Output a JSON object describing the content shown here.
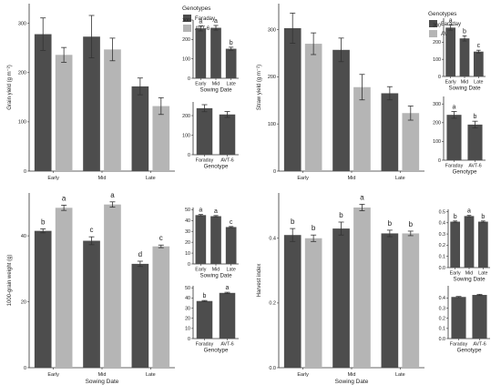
{
  "colors": {
    "faraday": "#4d4d4d",
    "avt6": "#b5b5b5",
    "axis": "#333333",
    "text": "#222222"
  },
  "legend": {
    "title": "Genotypes",
    "items": [
      "Faraday",
      "AVT-6"
    ]
  },
  "chart_data": [
    {
      "id": "grain-main",
      "type": "bar",
      "role": "main",
      "ylabel": "Grain yield (g m⁻²)",
      "xlabel": "",
      "categories": [
        "Early",
        "Mid",
        "Late"
      ],
      "ylim": [
        0,
        340
      ],
      "yticks": [
        0,
        100,
        200,
        300
      ],
      "legend": true,
      "series": [
        {
          "key": "faraday",
          "values": [
            278,
            273,
            172
          ],
          "errors": [
            33,
            43,
            17
          ],
          "letters": []
        },
        {
          "key": "avt6",
          "values": [
            236,
            247,
            132
          ],
          "errors": [
            15,
            23,
            17
          ],
          "letters": []
        }
      ]
    },
    {
      "id": "grain-sowing",
      "type": "bar",
      "role": "inset",
      "xlabel": "Sowing Date",
      "categories": [
        "Early",
        "Mid",
        "Late"
      ],
      "ylim": [
        0,
        300
      ],
      "yticks": [
        0,
        100,
        200,
        300
      ],
      "series": [
        {
          "key": "faraday",
          "values": [
            257,
            260,
            152
          ],
          "errors": [
            13,
            12,
            8
          ],
          "letters": [
            "a",
            "a",
            "b"
          ]
        }
      ]
    },
    {
      "id": "grain-genotype",
      "type": "bar",
      "role": "inset",
      "xlabel": "Genotype",
      "categories": [
        "Faraday",
        "AVT-6"
      ],
      "ylim": [
        0,
        270
      ],
      "yticks": [
        0,
        100,
        200
      ],
      "series": [
        {
          "key": "faraday",
          "values": [
            238,
            206
          ],
          "errors": [
            18,
            15
          ],
          "letters": []
        }
      ]
    },
    {
      "id": "straw-main",
      "type": "bar",
      "role": "main",
      "ylabel": "Straw yield (g m⁻²)",
      "xlabel": "",
      "categories": [
        "Early",
        "Mid",
        "Late"
      ],
      "ylim": [
        0,
        355
      ],
      "yticks": [
        0,
        100,
        200,
        300
      ],
      "legend": true,
      "series": [
        {
          "key": "faraday",
          "values": [
            303,
            257,
            165
          ],
          "errors": [
            32,
            25,
            14
          ],
          "letters": []
        },
        {
          "key": "avt6",
          "values": [
            270,
            178,
            123
          ],
          "errors": [
            23,
            27,
            15
          ],
          "letters": []
        }
      ]
    },
    {
      "id": "straw-sowing",
      "type": "bar",
      "role": "inset",
      "xlabel": "Sowing Date",
      "categories": [
        "Early",
        "Mid",
        "Late"
      ],
      "ylim": [
        0,
        340
      ],
      "yticks": [
        0,
        100,
        200,
        300
      ],
      "series": [
        {
          "key": "faraday",
          "values": [
            285,
            222,
            145
          ],
          "errors": [
            15,
            15,
            8
          ],
          "letters": [
            "a",
            "b",
            "c"
          ]
        }
      ]
    },
    {
      "id": "straw-genotype",
      "type": "bar",
      "role": "inset",
      "xlabel": "Genotype",
      "categories": [
        "Faraday",
        "AVT-6"
      ],
      "ylim": [
        0,
        340
      ],
      "yticks": [
        0,
        100,
        200,
        300
      ],
      "series": [
        {
          "key": "faraday",
          "values": [
            242,
            190
          ],
          "errors": [
            18,
            18
          ],
          "letters": [
            "a",
            "b"
          ]
        }
      ]
    },
    {
      "id": "tgw-main",
      "type": "bar",
      "role": "main",
      "ylabel": "1000-grain weight (g)",
      "xlabel": "Sowing Date",
      "categories": [
        "Early",
        "Mid",
        "Late"
      ],
      "ylim": [
        0,
        53
      ],
      "yticks": [
        0,
        20,
        40
      ],
      "legend": false,
      "series": [
        {
          "key": "faraday",
          "values": [
            41.5,
            38.5,
            31.5
          ],
          "errors": [
            0.6,
            1.2,
            0.8
          ],
          "letters": [
            "b",
            "c",
            "d"
          ]
        },
        {
          "key": "avt6",
          "values": [
            48.5,
            49.5,
            36.8
          ],
          "errors": [
            0.8,
            0.8,
            0.4
          ],
          "letters": [
            "a",
            "a",
            "c"
          ]
        }
      ]
    },
    {
      "id": "tgw-sowing",
      "type": "bar",
      "role": "inset",
      "xlabel": "Sowing Date",
      "categories": [
        "Early",
        "Mid",
        "Late"
      ],
      "ylim": [
        0,
        52
      ],
      "yticks": [
        0,
        10,
        20,
        30,
        40,
        50
      ],
      "series": [
        {
          "key": "faraday",
          "values": [
            45,
            44,
            34
          ],
          "errors": [
            0.6,
            0.6,
            0.5
          ],
          "letters": [
            "a",
            "a",
            "c"
          ]
        }
      ]
    },
    {
      "id": "tgw-genotype",
      "type": "bar",
      "role": "inset",
      "xlabel": "Genotype",
      "categories": [
        "Faraday",
        "AVT-6"
      ],
      "ylim": [
        0,
        52
      ],
      "yticks": [
        0,
        10,
        20,
        30,
        40,
        50
      ],
      "series": [
        {
          "key": "faraday",
          "values": [
            37,
            45
          ],
          "errors": [
            0.5,
            0.6
          ],
          "letters": [
            "b",
            "a"
          ]
        }
      ]
    },
    {
      "id": "hi-main",
      "type": "bar",
      "role": "main",
      "ylabel": "Harvest index",
      "xlabel": "Sowing Date",
      "categories": [
        "Early",
        "Mid",
        "Late"
      ],
      "ylim": [
        0,
        0.54
      ],
      "yticks": [
        0.0,
        0.2,
        0.4
      ],
      "tick_format": "1dp",
      "legend": false,
      "series": [
        {
          "key": "faraday",
          "values": [
            0.41,
            0.43,
            0.415
          ],
          "errors": [
            0.02,
            0.02,
            0.01
          ],
          "letters": [
            "b",
            "b",
            "b"
          ]
        },
        {
          "key": "avt6",
          "values": [
            0.4,
            0.495,
            0.415
          ],
          "errors": [
            0.01,
            0.01,
            0.007
          ],
          "letters": [
            "b",
            "a",
            "b"
          ]
        }
      ]
    },
    {
      "id": "hi-sowing",
      "type": "bar",
      "role": "inset",
      "xlabel": "Sowing Date",
      "categories": [
        "Early",
        "Mid",
        "Late"
      ],
      "ylim": [
        0,
        0.52
      ],
      "yticks": [
        0.0,
        0.1,
        0.2,
        0.3,
        0.4,
        0.5
      ],
      "tick_format": "1dp",
      "series": [
        {
          "key": "faraday",
          "values": [
            0.41,
            0.46,
            0.41
          ],
          "errors": [
            0.006,
            0.006,
            0.006
          ],
          "letters": [
            "b",
            "a",
            "b"
          ]
        }
      ]
    },
    {
      "id": "hi-genotype",
      "type": "bar",
      "role": "inset",
      "xlabel": "Genotype",
      "categories": [
        "Faraday",
        "AVT-6"
      ],
      "ylim": [
        0,
        0.52
      ],
      "yticks": [
        0.0,
        0.1,
        0.2,
        0.3,
        0.4
      ],
      "tick_format": "1dp",
      "series": [
        {
          "key": "faraday",
          "values": [
            0.41,
            0.43
          ],
          "errors": [
            0.005,
            0.006
          ],
          "letters": []
        }
      ]
    }
  ]
}
